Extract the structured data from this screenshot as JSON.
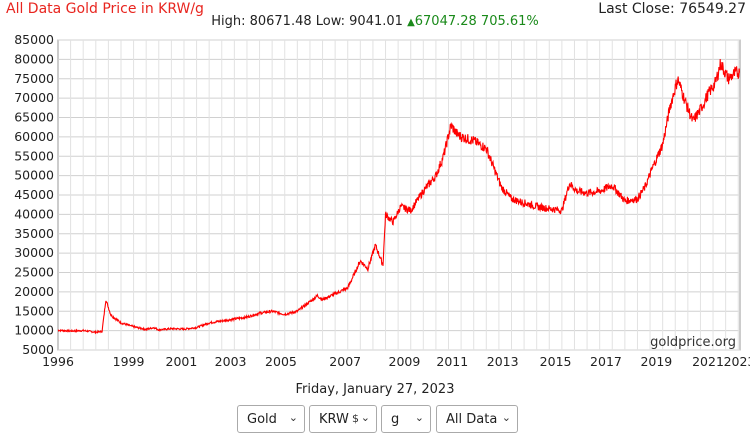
{
  "header": {
    "title": "All Data Gold Price in KRW/g",
    "last_close_label": "Last Close: 76549.27",
    "high_low_label": "High: 80671.48 Low: 9041.01",
    "change_label": "67047.28 705.61%",
    "change_arrow": "▲"
  },
  "watermark": "goldprice.org",
  "date_label": "Friday, January 27, 2023",
  "controls": {
    "metal": "Gold",
    "currency": "KRW",
    "currency_glyph": "$",
    "unit": "g",
    "range": "All Data"
  },
  "colors": {
    "line": "#ff0000",
    "title": "#e8251f",
    "change": "#1a8a1a",
    "grid": "#d0d0d0"
  },
  "chart_data": {
    "type": "line",
    "ylim": [
      5000,
      85000
    ],
    "yticks": [
      5000,
      10000,
      15000,
      20000,
      25000,
      30000,
      35000,
      40000,
      45000,
      50000,
      55000,
      60000,
      65000,
      70000,
      75000,
      80000,
      85000
    ],
    "xlim": [
      1996,
      2023.07
    ],
    "xticks": [
      "1996",
      "1999",
      "2001",
      "2003",
      "2005",
      "2007",
      "2009",
      "2011",
      "2013",
      "2015",
      "2017",
      "2019",
      "2021",
      "2023"
    ],
    "xtick_values": [
      1996,
      1998.8,
      2000.9,
      2002.85,
      2004.85,
      2007.4,
      2009.75,
      2011.65,
      2013.65,
      2015.75,
      2017.75,
      2019.75,
      2021.8,
      2023.05
    ],
    "series": [
      {
        "x": [
          1996,
          1996.5,
          1997,
          1997.5,
          1997.75,
          1997.9,
          1998.1,
          1998.5,
          1999,
          1999.5,
          1999.8,
          2000,
          2000.5,
          2001,
          2001.5,
          2002,
          2002.5,
          2003,
          2003.5,
          2004,
          2004.5,
          2005,
          2005.5,
          2006,
          2006.3,
          2006.5,
          2007,
          2007.5,
          2008,
          2008.3,
          2008.6,
          2008.9,
          2009,
          2009.3,
          2009.6,
          2010,
          2010.5,
          2011,
          2011.3,
          2011.6,
          2011.8,
          2012,
          2012.5,
          2013,
          2013.3,
          2013.6,
          2014,
          2014.5,
          2015,
          2015.5,
          2016,
          2016.3,
          2016.6,
          2017,
          2017.5,
          2018,
          2018.5,
          2019,
          2019.3,
          2019.6,
          2020,
          2020.3,
          2020.6,
          2020.9,
          2021.2,
          2021.5,
          2021.8,
          2022.1,
          2022.3,
          2022.6,
          2022.9,
          2023.05
        ],
        "y": [
          10100,
          9900,
          10000,
          9600,
          9800,
          18000,
          14000,
          12000,
          11000,
          10300,
          10800,
          10200,
          10500,
          10400,
          10800,
          12000,
          12500,
          13000,
          13500,
          14500,
          15000,
          14200,
          15000,
          17500,
          19000,
          18000,
          19500,
          21000,
          28000,
          26000,
          32000,
          27000,
          40000,
          38000,
          42000,
          41000,
          46000,
          50000,
          55000,
          63000,
          61000,
          60000,
          59000,
          57000,
          52000,
          47000,
          44000,
          43000,
          42000,
          41500,
          41000,
          48000,
          46000,
          45500,
          46000,
          47500,
          43500,
          44000,
          47000,
          52000,
          58000,
          68000,
          75000,
          69000,
          64000,
          67000,
          71000,
          74000,
          79000,
          75000,
          76500,
          76549
        ]
      }
    ]
  }
}
